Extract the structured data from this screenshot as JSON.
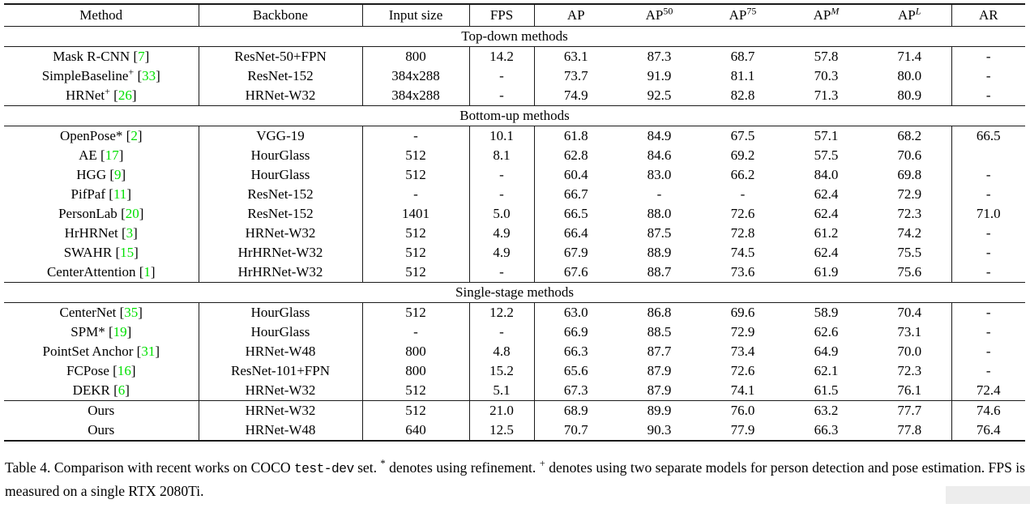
{
  "colors": {
    "citation": "#00e000"
  },
  "table": {
    "header": [
      {
        "id": "method",
        "text": "Method",
        "sup": "",
        "italic_sup": false
      },
      {
        "id": "backbone",
        "text": "Backbone",
        "sup": "",
        "italic_sup": false
      },
      {
        "id": "input-size",
        "text": "Input size",
        "sup": "",
        "italic_sup": false
      },
      {
        "id": "fps",
        "text": "FPS",
        "sup": "",
        "italic_sup": false
      },
      {
        "id": "ap",
        "text": "AP",
        "sup": "",
        "italic_sup": false
      },
      {
        "id": "ap50",
        "text": "AP",
        "sup": "50",
        "italic_sup": false
      },
      {
        "id": "ap75",
        "text": "AP",
        "sup": "75",
        "italic_sup": false
      },
      {
        "id": "apm",
        "text": "AP",
        "sup": "M",
        "italic_sup": true
      },
      {
        "id": "apl",
        "text": "AP",
        "sup": "L",
        "italic_sup": true
      },
      {
        "id": "ar",
        "text": "AR",
        "sup": "",
        "italic_sup": false
      }
    ],
    "sections": [
      {
        "title": "Top-down methods",
        "rows": [
          {
            "name": "Mask R-CNN",
            "sup": "",
            "cite": "7",
            "backbone": "ResNet-50+FPN",
            "input": "800",
            "fps": "14.2",
            "ap": "63.1",
            "ap50": "87.3",
            "ap75": "68.7",
            "apm": "57.8",
            "apl": "71.4",
            "ar": "-",
            "bold": false,
            "rule_above": false
          },
          {
            "name": "SimpleBaseline",
            "sup": "+",
            "cite": "33",
            "backbone": "ResNet-152",
            "input": "384x288",
            "fps": "-",
            "ap": "73.7",
            "ap50": "91.9",
            "ap75": "81.1",
            "apm": "70.3",
            "apl": "80.0",
            "ar": "-",
            "bold": false,
            "rule_above": false
          },
          {
            "name": "HRNet",
            "sup": "+",
            "cite": "26",
            "backbone": "HRNet-W32",
            "input": "384x288",
            "fps": "-",
            "ap": "74.9",
            "ap50": "92.5",
            "ap75": "82.8",
            "apm": "71.3",
            "apl": "80.9",
            "ar": "-",
            "bold": false,
            "rule_above": false
          }
        ]
      },
      {
        "title": "Bottom-up methods",
        "rows": [
          {
            "name": "OpenPose*",
            "sup": "",
            "cite": "2",
            "backbone": "VGG-19",
            "input": "-",
            "fps": "10.1",
            "ap": "61.8",
            "ap50": "84.9",
            "ap75": "67.5",
            "apm": "57.1",
            "apl": "68.2",
            "ar": "66.5",
            "bold": false,
            "rule_above": false
          },
          {
            "name": "AE",
            "sup": "",
            "cite": "17",
            "backbone": "HourGlass",
            "input": "512",
            "fps": "8.1",
            "ap": "62.8",
            "ap50": "84.6",
            "ap75": "69.2",
            "apm": "57.5",
            "apl": "70.6",
            "ar": "",
            "bold": false,
            "rule_above": false
          },
          {
            "name": "HGG",
            "sup": "",
            "cite": "9",
            "backbone": "HourGlass",
            "input": "512",
            "fps": "-",
            "ap": "60.4",
            "ap50": "83.0",
            "ap75": "66.2",
            "apm": "84.0",
            "apl": "69.8",
            "ar": "-",
            "bold": false,
            "rule_above": false
          },
          {
            "name": "PifPaf",
            "sup": "",
            "cite": "11",
            "backbone": "ResNet-152",
            "input": "-",
            "fps": "-",
            "ap": "66.7",
            "ap50": "-",
            "ap75": "-",
            "apm": "62.4",
            "apl": "72.9",
            "ar": "-",
            "bold": false,
            "rule_above": false
          },
          {
            "name": "PersonLab",
            "sup": "",
            "cite": "20",
            "backbone": "ResNet-152",
            "input": "1401",
            "fps": "5.0",
            "ap": "66.5",
            "ap50": "88.0",
            "ap75": "72.6",
            "apm": "62.4",
            "apl": "72.3",
            "ar": "71.0",
            "bold": false,
            "rule_above": false
          },
          {
            "name": "HrHRNet",
            "sup": "",
            "cite": "3",
            "backbone": "HRNet-W32",
            "input": "512",
            "fps": "4.9",
            "ap": "66.4",
            "ap50": "87.5",
            "ap75": "72.8",
            "apm": "61.2",
            "apl": "74.2",
            "ar": "-",
            "bold": false,
            "rule_above": false
          },
          {
            "name": "SWAHR",
            "sup": "",
            "cite": "15",
            "backbone": "HrHRNet-W32",
            "input": "512",
            "fps": "4.9",
            "ap": "67.9",
            "ap50": "88.9",
            "ap75": "74.5",
            "apm": "62.4",
            "apl": "75.5",
            "ar": "-",
            "bold": false,
            "rule_above": false
          },
          {
            "name": "CenterAttention",
            "sup": "",
            "cite": "1",
            "backbone": "HrHRNet-W32",
            "input": "512",
            "fps": "-",
            "ap": "67.6",
            "ap50": "88.7",
            "ap75": "73.6",
            "apm": "61.9",
            "apl": "75.6",
            "ar": "-",
            "bold": false,
            "rule_above": false
          }
        ]
      },
      {
        "title": "Single-stage methods",
        "rows": [
          {
            "name": "CenterNet",
            "sup": "",
            "cite": "35",
            "backbone": "HourGlass",
            "input": "512",
            "fps": "12.2",
            "ap": "63.0",
            "ap50": "86.8",
            "ap75": "69.6",
            "apm": "58.9",
            "apl": "70.4",
            "ar": "-",
            "bold": false,
            "rule_above": false
          },
          {
            "name": "SPM*",
            "sup": "",
            "cite": "19",
            "backbone": "HourGlass",
            "input": "-",
            "fps": "-",
            "ap": "66.9",
            "ap50": "88.5",
            "ap75": "72.9",
            "apm": "62.6",
            "apl": "73.1",
            "ar": "-",
            "bold": false,
            "rule_above": false
          },
          {
            "name": "PointSet Anchor",
            "sup": "",
            "cite": "31",
            "backbone": "HRNet-W48",
            "input": "800",
            "fps": "4.8",
            "ap": "66.3",
            "ap50": "87.7",
            "ap75": "73.4",
            "apm": "64.9",
            "apl": "70.0",
            "ar": "-",
            "bold": false,
            "rule_above": false
          },
          {
            "name": "FCPose",
            "sup": "",
            "cite": "16",
            "backbone": "ResNet-101+FPN",
            "input": "800",
            "fps": "15.2",
            "ap": "65.6",
            "ap50": "87.9",
            "ap75": "72.6",
            "apm": "62.1",
            "apl": "72.3",
            "ar": "-",
            "bold": false,
            "rule_above": false
          },
          {
            "name": "DEKR",
            "sup": "",
            "cite": "6",
            "backbone": "HRNet-W32",
            "input": "512",
            "fps": "5.1",
            "ap": "67.3",
            "ap50": "87.9",
            "ap75": "74.1",
            "apm": "61.5",
            "apl": "76.1",
            "ar": "72.4",
            "bold": false,
            "rule_above": false
          },
          {
            "name": "Ours",
            "sup": "",
            "cite": "",
            "backbone": "HRNet-W32",
            "input": "512",
            "fps": "21.0",
            "ap": "68.9",
            "ap50": "89.9",
            "ap75": "76.0",
            "apm": "63.2",
            "apl": "77.7",
            "ar": "74.6",
            "bold": true,
            "rule_above": true
          },
          {
            "name": "Ours",
            "sup": "",
            "cite": "",
            "backbone": "HRNet-W48",
            "input": "640",
            "fps": "12.5",
            "ap": "70.7",
            "ap50": "90.3",
            "ap75": "77.9",
            "apm": "66.3",
            "apl": "77.8",
            "ar": "76.4",
            "bold": true,
            "rule_above": false
          }
        ]
      }
    ]
  },
  "caption": {
    "part1": "Table 4. Comparison with recent works on COCO ",
    "code": "test-dev",
    "part2": " set. ",
    "star": "*",
    "part3": " denotes using refinement. ",
    "plus": "+",
    "part4": " denotes using two separate models for person detection and pose estimation. FPS is measured on a single RTX 2080Ti."
  }
}
